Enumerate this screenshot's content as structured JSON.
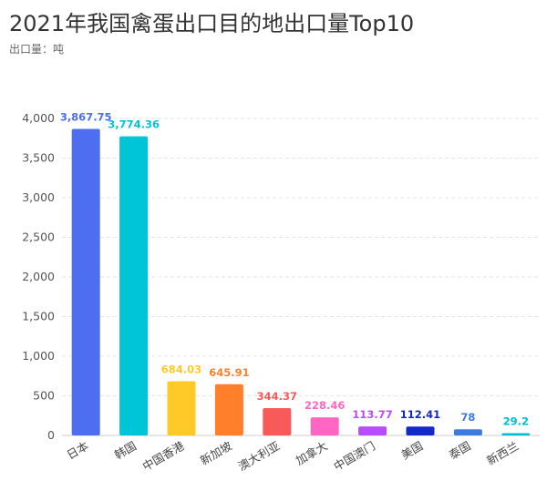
{
  "title": "2021年我国禽蛋出口目的地出口量Top10",
  "subtitle": "出口量：吨",
  "chart_data": {
    "type": "bar",
    "categories": [
      "日本",
      "韩国",
      "中国香港",
      "新加坡",
      "澳大利亚",
      "加拿大",
      "中国澳门",
      "美国",
      "泰国",
      "新西兰"
    ],
    "values": [
      3867.75,
      3774.36,
      684.03,
      645.91,
      344.37,
      228.46,
      113.77,
      112.41,
      78,
      29.2
    ],
    "value_labels": [
      "3,867.75",
      "3,774.36",
      "684.03",
      "645.91",
      "344.37",
      "228.46",
      "113.77",
      "112.41",
      "78",
      "29.2"
    ],
    "colors": [
      "#4e6ef2",
      "#00c5d8",
      "#ffca28",
      "#ff7f2a",
      "#f85a5a",
      "#ff66c4",
      "#b84dff",
      "#1428c8",
      "#3d7be0",
      "#00bcd4"
    ],
    "yticks": [
      0,
      500,
      1000,
      1500,
      2000,
      2500,
      3000,
      3500,
      4000
    ],
    "ytick_labels": [
      "0",
      "500",
      "1,000",
      "1,500",
      "2,000",
      "2,500",
      "3,000",
      "3,500",
      "4,000"
    ],
    "ylim": [
      0,
      4000
    ],
    "xlabel": "",
    "ylabel": "",
    "grid": true
  }
}
